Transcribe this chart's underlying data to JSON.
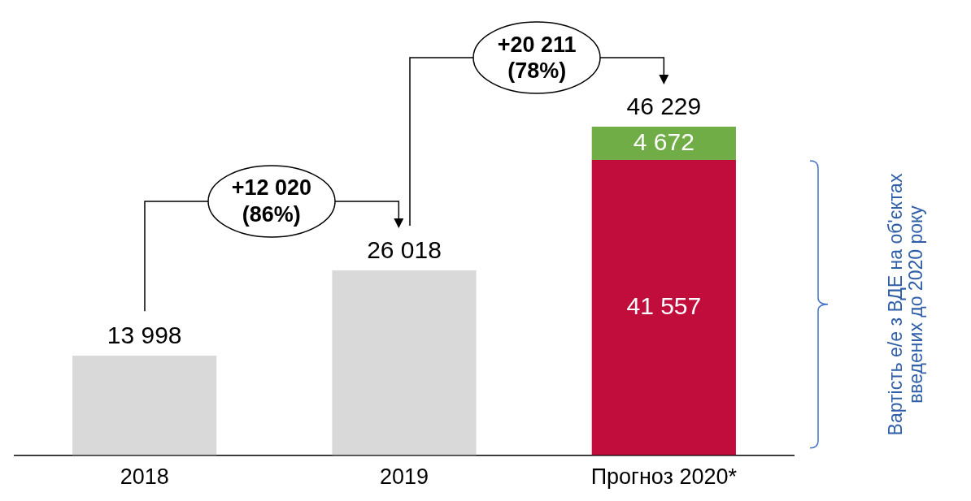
{
  "chart_data": {
    "type": "bar",
    "stacked": true,
    "categories": [
      "2018",
      "2019",
      "Прогноз 2020*"
    ],
    "series": [
      {
        "color": "#d9d9d9",
        "values": [
          13998,
          26018,
          null
        ]
      },
      {
        "color": "#c00d3c",
        "values": [
          null,
          null,
          41557
        ],
        "value_labels": [
          null,
          null,
          "41 557"
        ]
      },
      {
        "color": "#70ad47",
        "values": [
          null,
          null,
          4672
        ],
        "value_labels": [
          null,
          null,
          "4 672"
        ]
      }
    ],
    "totals": [
      "13 998",
      "26 018",
      "46 229"
    ],
    "tick_labels": "x",
    "grid": false,
    "legend": false,
    "annotations": [
      "+12 020\n(86%)",
      "+20 211\n(78%)",
      "Вартість е/е з ВДЕ на об'єктах введених до 2020 року"
    ]
  }
}
